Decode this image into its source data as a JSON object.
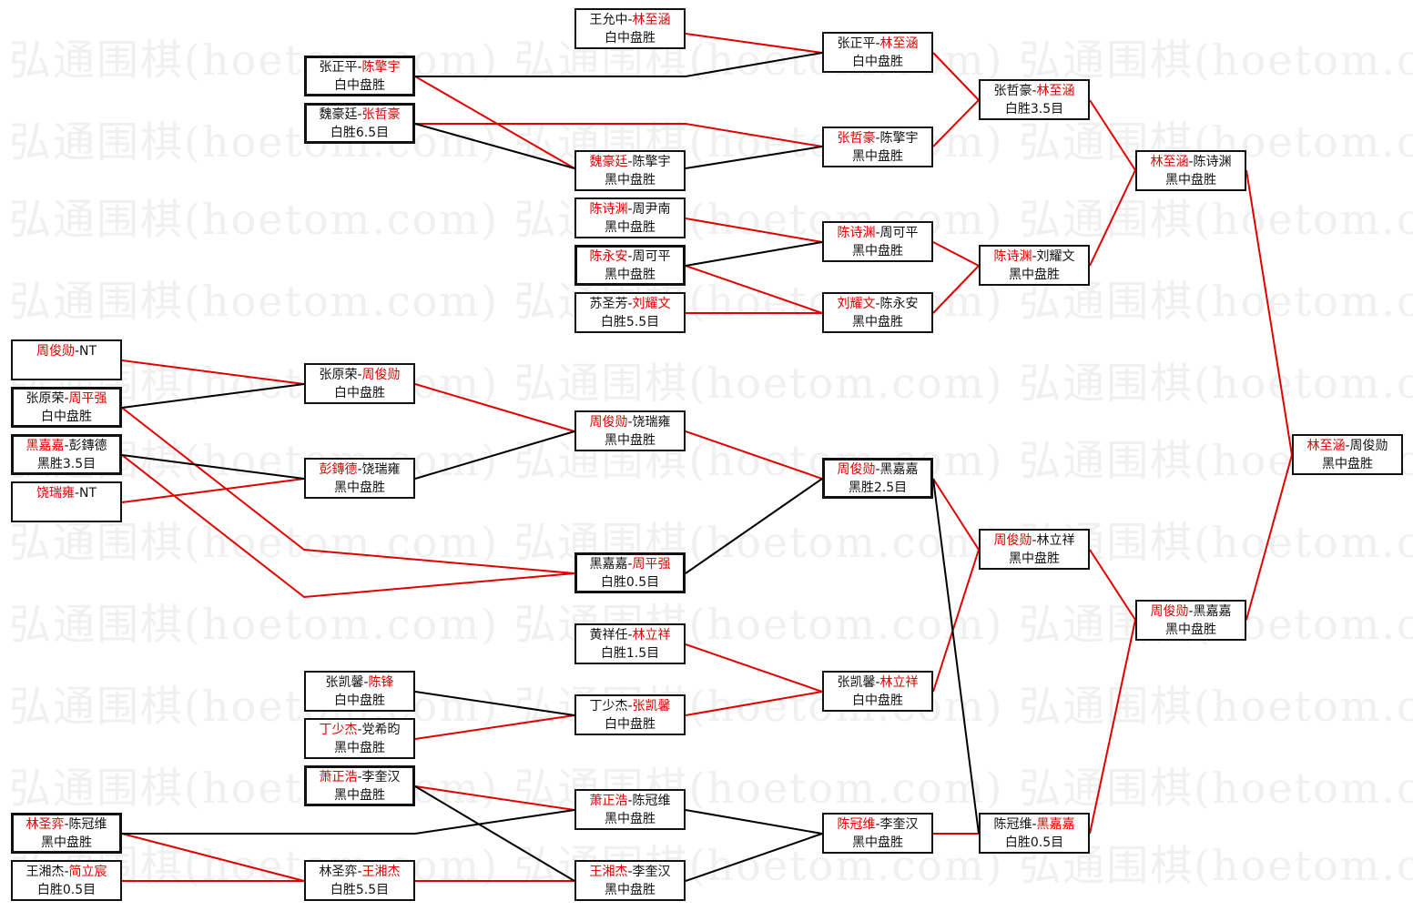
{
  "watermark": "弘通围棋(hoetom.com)",
  "colors": {
    "winner": "#e00000",
    "loser_line": "#000000",
    "winner_line": "#e00000"
  },
  "matches": {
    "a1": {
      "p1": "周俊勋",
      "p2": "NT",
      "red": 1,
      "result": ""
    },
    "a2": {
      "p1": "张原荣",
      "p2": "周平强",
      "red": 2,
      "result": "白中盘胜"
    },
    "a3": {
      "p1": "黑嘉嘉",
      "p2": "彭鏄德",
      "red": 1,
      "result": "黑胜3.5目"
    },
    "a4": {
      "p1": "饶瑞雍",
      "p2": "NT",
      "red": 1,
      "result": ""
    },
    "a5": {
      "p1": "林圣弈",
      "p2": "陈冠维",
      "red": 1,
      "result": "黑中盘胜"
    },
    "a6": {
      "p1": "王湘杰",
      "p2": "简立宸",
      "red": 2,
      "result": "白胜0.5目"
    },
    "b1": {
      "p1": "张正平",
      "p2": "陈擎宇",
      "red": 2,
      "result": "白中盘胜"
    },
    "b2": {
      "p1": "魏豪廷",
      "p2": "张哲豪",
      "red": 2,
      "result": "白胜6.5目"
    },
    "b3": {
      "p1": "张原荣",
      "p2": "周俊勋",
      "red": 2,
      "result": "白中盘胜"
    },
    "b4": {
      "p1": "彭鏄德",
      "p2": "饶瑞雍",
      "red": 1,
      "result": "黑中盘胜"
    },
    "b5": {
      "p1": "张凯馨",
      "p2": "陈锋",
      "red": 2,
      "result": "白中盘胜"
    },
    "b6": {
      "p1": "丁少杰",
      "p2": "党希昀",
      "red": 1,
      "result": "黑中盘胜"
    },
    "b7": {
      "p1": "萧正浩",
      "p2": "李奎汉",
      "red": 1,
      "result": "黑中盘胜"
    },
    "b8": {
      "p1": "林圣弈",
      "p2": "王湘杰",
      "red": 2,
      "result": "白胜5.5目"
    },
    "c1": {
      "p1": "王允中",
      "p2": "林至涵",
      "red": 2,
      "result": "白中盘胜"
    },
    "c2": {
      "p1": "魏豪廷",
      "p2": "陈擎宇",
      "red": 1,
      "result": "黑中盘胜"
    },
    "c3": {
      "p1": "陈诗渊",
      "p2": "周尹南",
      "red": 1,
      "result": "黑中盘胜"
    },
    "c4": {
      "p1": "陈永安",
      "p2": "周可平",
      "red": 1,
      "result": "黑中盘胜"
    },
    "c5": {
      "p1": "苏圣芳",
      "p2": "刘耀文",
      "red": 2,
      "result": "白胜5.5目"
    },
    "c6": {
      "p1": "周俊勋",
      "p2": "饶瑞雍",
      "red": 1,
      "result": "黑中盘胜"
    },
    "c7": {
      "p1": "黑嘉嘉",
      "p2": "周平强",
      "red": 2,
      "result": "白胜0.5目"
    },
    "c8": {
      "p1": "黄祥任",
      "p2": "林立祥",
      "red": 2,
      "result": "白胜1.5目"
    },
    "c9": {
      "p1": "丁少杰",
      "p2": "张凯馨",
      "red": 2,
      "result": "白中盘胜"
    },
    "c10": {
      "p1": "萧正浩",
      "p2": "陈冠维",
      "red": 1,
      "result": "黑中盘胜"
    },
    "c11": {
      "p1": "王湘杰",
      "p2": "李奎汉",
      "red": 1,
      "result": "黑中盘胜"
    },
    "d1": {
      "p1": "张正平",
      "p2": "林至涵",
      "red": 2,
      "result": "白中盘胜"
    },
    "d2": {
      "p1": "张哲豪",
      "p2": "陈擎宇",
      "red": 1,
      "result": "黑中盘胜"
    },
    "d3": {
      "p1": "陈诗渊",
      "p2": "周可平",
      "red": 1,
      "result": "黑中盘胜"
    },
    "d4": {
      "p1": "刘耀文",
      "p2": "陈永安",
      "red": 1,
      "result": "黑中盘胜"
    },
    "d5": {
      "p1": "周俊勋",
      "p2": "黑嘉嘉",
      "red": 1,
      "result": "黑胜2.5目"
    },
    "d6": {
      "p1": "张凯馨",
      "p2": "林立祥",
      "red": 2,
      "result": "白中盘胜"
    },
    "d7": {
      "p1": "陈冠维",
      "p2": "李奎汉",
      "red": 1,
      "result": "黑中盘胜"
    },
    "e1": {
      "p1": "张哲豪",
      "p2": "林至涵",
      "red": 2,
      "result": "白胜3.5目"
    },
    "e2": {
      "p1": "陈诗渊",
      "p2": "刘耀文",
      "red": 1,
      "result": "黑中盘胜"
    },
    "e3": {
      "p1": "周俊勋",
      "p2": "林立祥",
      "red": 1,
      "result": "黑中盘胜"
    },
    "e4": {
      "p1": "陈冠维",
      "p2": "黑嘉嘉",
      "red": 2,
      "result": "白胜0.5目"
    },
    "f1": {
      "p1": "林至涵",
      "p2": "陈诗渊",
      "red": 1,
      "result": "黑中盘胜"
    },
    "f2": {
      "p1": "周俊勋",
      "p2": "黑嘉嘉",
      "red": 1,
      "result": "黑中盘胜"
    },
    "g1": {
      "p1": "林至涵",
      "p2": "周俊勋",
      "red": 1,
      "result": "黑中盘胜"
    }
  }
}
